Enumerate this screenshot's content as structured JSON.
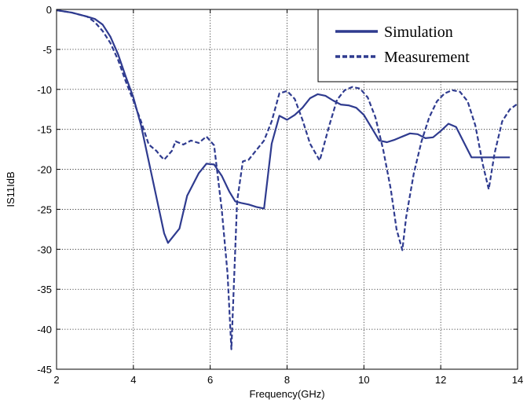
{
  "chart_data": {
    "type": "line",
    "xlabel": "Frequency(GHz)",
    "ylabel": "IS11IdB",
    "xlim": [
      2,
      14
    ],
    "ylim": [
      -45,
      0
    ],
    "xticks": [
      2,
      4,
      6,
      8,
      10,
      12,
      14
    ],
    "yticks": [
      0,
      -5,
      -10,
      -15,
      -20,
      -25,
      -30,
      -35,
      -40,
      -45
    ],
    "grid": true,
    "legend_position": "top-right",
    "color": "#2f3b8f",
    "series": [
      {
        "name": "Simulation",
        "style": "solid",
        "x": [
          2.0,
          2.4,
          2.8,
          3.0,
          3.2,
          3.4,
          3.6,
          3.8,
          4.0,
          4.2,
          4.4,
          4.6,
          4.8,
          4.9,
          5.2,
          5.4,
          5.7,
          5.9,
          6.1,
          6.3,
          6.5,
          6.65,
          6.8,
          7.0,
          7.2,
          7.4,
          7.6,
          7.8,
          8.0,
          8.2,
          8.4,
          8.6,
          8.8,
          9.0,
          9.2,
          9.4,
          9.6,
          9.8,
          10.0,
          10.2,
          10.4,
          10.6,
          10.8,
          11.0,
          11.2,
          11.4,
          11.6,
          11.8,
          12.0,
          12.2,
          12.4,
          12.6,
          12.8,
          13.0,
          13.2,
          13.4,
          13.6,
          13.8
        ],
        "y": [
          -0.1,
          -0.4,
          -0.9,
          -1.2,
          -1.9,
          -3.4,
          -5.6,
          -8.4,
          -11.0,
          -14.5,
          -19.0,
          -23.5,
          -28.0,
          -29.2,
          -27.4,
          -23.3,
          -20.5,
          -19.3,
          -19.4,
          -20.8,
          -22.8,
          -24.0,
          -24.2,
          -24.4,
          -24.7,
          -24.9,
          -16.8,
          -13.3,
          -13.8,
          -13.2,
          -12.3,
          -11.1,
          -10.6,
          -10.8,
          -11.4,
          -11.9,
          -12.0,
          -12.3,
          -13.2,
          -14.8,
          -16.4,
          -16.6,
          -16.3,
          -15.9,
          -15.5,
          -15.6,
          -16.1,
          -16.0,
          -15.2,
          -14.3,
          -14.7,
          -16.6,
          -18.5,
          -18.5,
          -18.5,
          -18.5,
          -18.5,
          -18.5
        ]
      },
      {
        "name": "Measurement",
        "style": "dashed",
        "x": [
          2.0,
          2.4,
          2.8,
          3.0,
          3.2,
          3.4,
          3.6,
          3.8,
          4.0,
          4.2,
          4.4,
          4.6,
          4.7,
          4.8,
          5.0,
          5.1,
          5.3,
          5.5,
          5.7,
          5.9,
          6.1,
          6.3,
          6.45,
          6.55,
          6.7,
          6.85,
          7.0,
          7.2,
          7.4,
          7.6,
          7.8,
          8.0,
          8.2,
          8.4,
          8.6,
          8.85,
          9.1,
          9.3,
          9.5,
          9.7,
          9.9,
          10.1,
          10.3,
          10.5,
          10.7,
          10.85,
          11.0,
          11.1,
          11.3,
          11.5,
          11.7,
          11.9,
          12.1,
          12.3,
          12.5,
          12.7,
          12.9,
          13.1,
          13.25,
          13.4,
          13.6,
          13.8,
          14.0
        ],
        "y": [
          -0.1,
          -0.4,
          -0.9,
          -1.6,
          -2.7,
          -4.2,
          -6.3,
          -9.0,
          -11.4,
          -14.0,
          -16.9,
          -17.7,
          -18.3,
          -18.8,
          -17.7,
          -16.5,
          -16.9,
          -16.4,
          -16.7,
          -15.9,
          -17.0,
          -25.0,
          -33.0,
          -42.5,
          -24.0,
          -19.0,
          -18.8,
          -17.6,
          -16.4,
          -14.0,
          -10.5,
          -10.2,
          -11.2,
          -13.8,
          -16.8,
          -18.9,
          -14.5,
          -11.3,
          -10.1,
          -9.7,
          -9.9,
          -11.0,
          -13.5,
          -17.5,
          -22.5,
          -27.5,
          -30.1,
          -26.0,
          -20.5,
          -16.5,
          -13.5,
          -11.5,
          -10.5,
          -10.1,
          -10.3,
          -11.5,
          -14.5,
          -19.5,
          -22.5,
          -18.0,
          -14.0,
          -12.5,
          -11.8
        ]
      }
    ]
  }
}
